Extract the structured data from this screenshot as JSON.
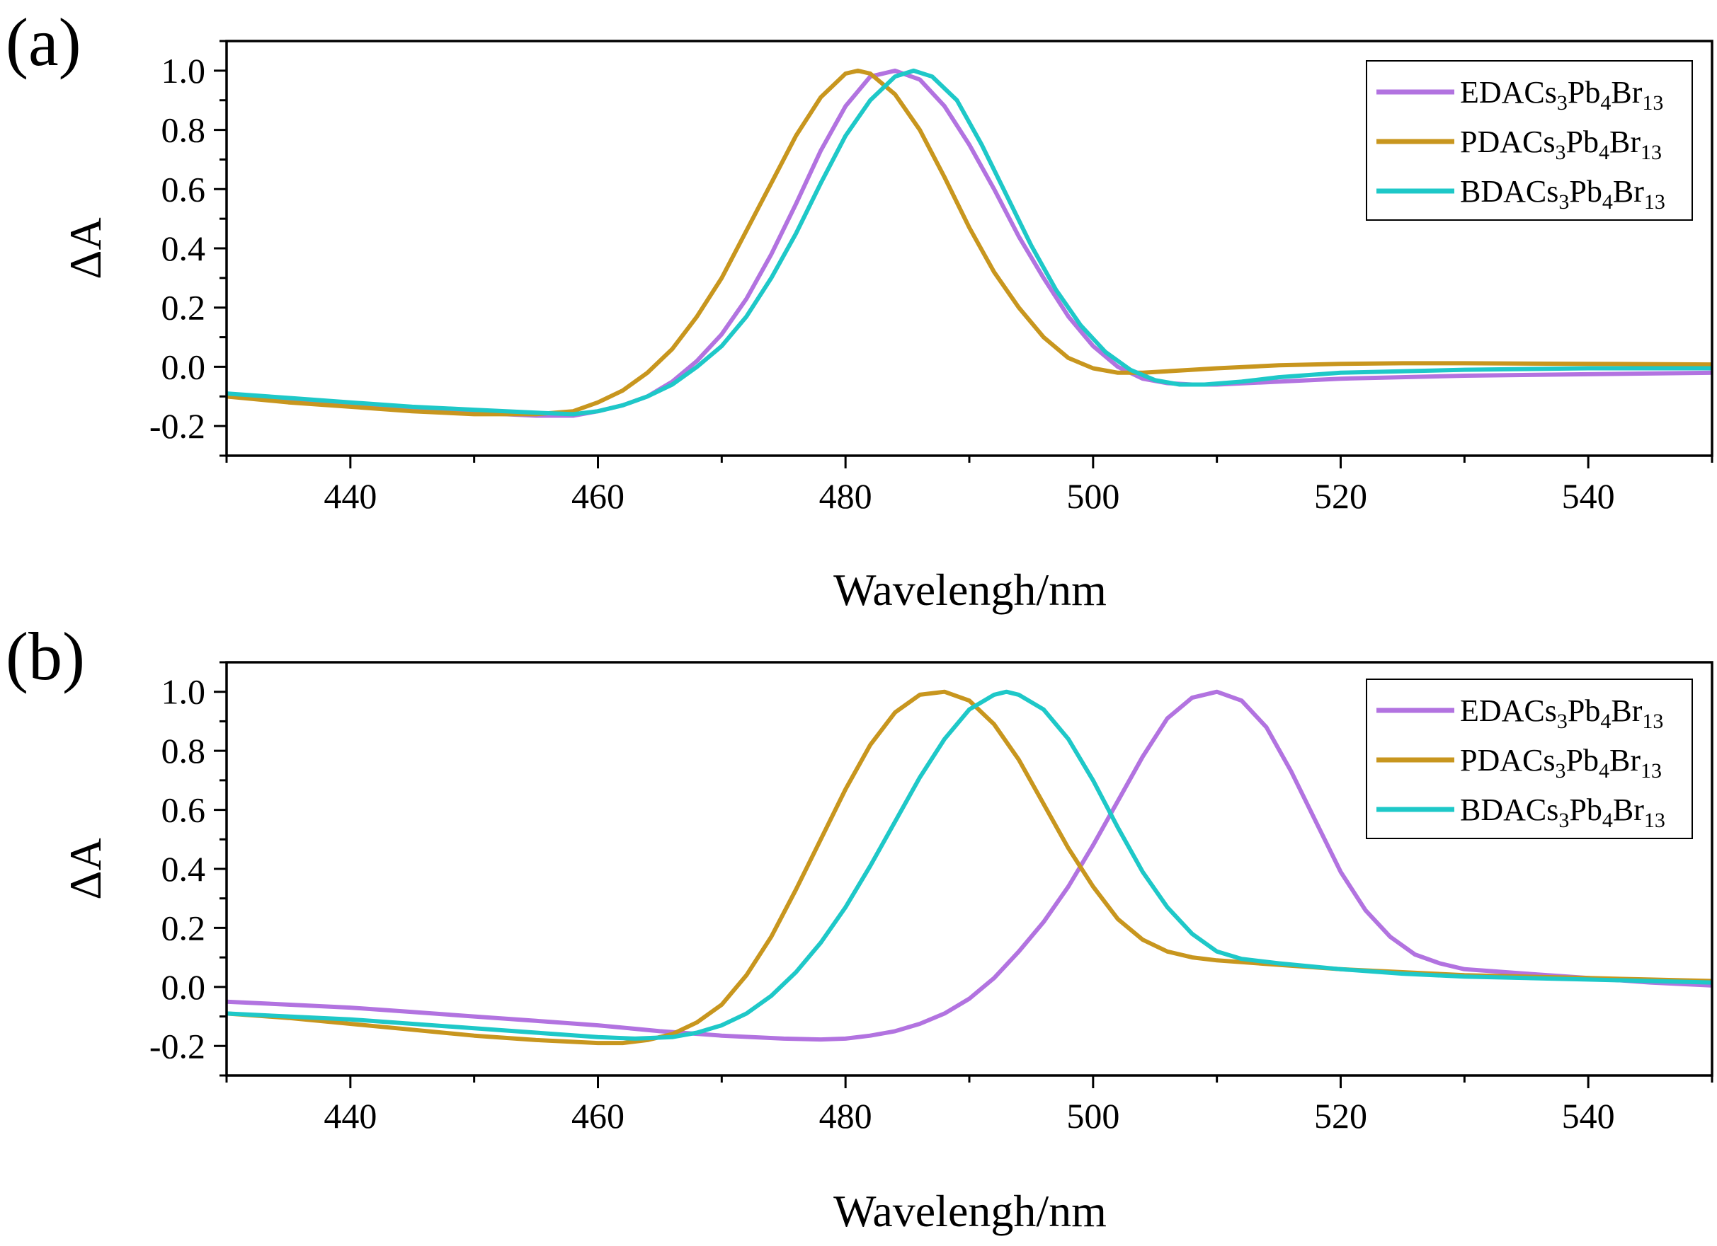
{
  "chart_data": [
    {
      "panel_label": "(a)",
      "type": "line",
      "title": "",
      "xlabel": "Wavelengh/nm",
      "ylabel": "ΔA",
      "xlim": [
        430,
        550
      ],
      "ylim": [
        -0.3,
        1.1
      ],
      "xticks": [
        "440",
        "460",
        "480",
        "500",
        "520",
        "540"
      ],
      "yticks": [
        "-0.2",
        "0.0",
        "0.2",
        "0.4",
        "0.6",
        "0.8",
        "1.0"
      ],
      "legend_position": "top-right",
      "series": [
        {
          "name": "EDACs3Pb4Br13",
          "label_parts": [
            "EDACs",
            "3",
            "Pb",
            "4",
            "Br",
            "13"
          ],
          "color": "#b273e0",
          "x": [
            430,
            435,
            440,
            445,
            450,
            455,
            458,
            460,
            462,
            464,
            466,
            468,
            470,
            472,
            474,
            476,
            478,
            480,
            482,
            484,
            486,
            488,
            490,
            492,
            494,
            496,
            498,
            500,
            502,
            504,
            506,
            508,
            510,
            515,
            520,
            530,
            540,
            550
          ],
          "y": [
            -0.1,
            -0.115,
            -0.13,
            -0.145,
            -0.155,
            -0.165,
            -0.165,
            -0.15,
            -0.13,
            -0.1,
            -0.05,
            0.02,
            0.11,
            0.23,
            0.38,
            0.55,
            0.73,
            0.88,
            0.98,
            1.0,
            0.97,
            0.88,
            0.75,
            0.6,
            0.44,
            0.3,
            0.17,
            0.07,
            0.0,
            -0.04,
            -0.055,
            -0.06,
            -0.06,
            -0.05,
            -0.04,
            -0.03,
            -0.025,
            -0.02
          ]
        },
        {
          "name": "PDACs3Pb4Br13",
          "label_parts": [
            "PDACs",
            "3",
            "Pb",
            "4",
            "Br",
            "13"
          ],
          "color": "#c8961e",
          "x": [
            430,
            435,
            440,
            445,
            450,
            455,
            458,
            460,
            462,
            464,
            466,
            468,
            470,
            472,
            474,
            476,
            478,
            480,
            481,
            482,
            484,
            486,
            488,
            490,
            492,
            494,
            496,
            498,
            500,
            502,
            504,
            506,
            508,
            510,
            515,
            520,
            525,
            530,
            540,
            550
          ],
          "y": [
            -0.1,
            -0.12,
            -0.135,
            -0.15,
            -0.16,
            -0.16,
            -0.15,
            -0.12,
            -0.08,
            -0.02,
            0.06,
            0.17,
            0.3,
            0.46,
            0.62,
            0.78,
            0.91,
            0.99,
            1.0,
            0.99,
            0.92,
            0.8,
            0.64,
            0.47,
            0.32,
            0.2,
            0.1,
            0.03,
            -0.005,
            -0.02,
            -0.02,
            -0.015,
            -0.01,
            -0.005,
            0.005,
            0.01,
            0.012,
            0.012,
            0.01,
            0.008
          ]
        },
        {
          "name": "BDACs3Pb4Br13",
          "label_parts": [
            "BDACs",
            "3",
            "Pb",
            "4",
            "Br",
            "13"
          ],
          "color": "#1ec8c8",
          "x": [
            430,
            435,
            440,
            445,
            450,
            455,
            458,
            460,
            462,
            464,
            466,
            468,
            470,
            472,
            474,
            476,
            478,
            480,
            482,
            484,
            485.5,
            487,
            489,
            491,
            493,
            495,
            497,
            499,
            501,
            503,
            505,
            507,
            509,
            512,
            515,
            520,
            530,
            540,
            550
          ],
          "y": [
            -0.09,
            -0.105,
            -0.12,
            -0.135,
            -0.145,
            -0.155,
            -0.16,
            -0.15,
            -0.13,
            -0.1,
            -0.06,
            0.0,
            0.07,
            0.17,
            0.3,
            0.45,
            0.62,
            0.78,
            0.9,
            0.98,
            1.0,
            0.98,
            0.9,
            0.75,
            0.58,
            0.41,
            0.26,
            0.14,
            0.05,
            -0.01,
            -0.045,
            -0.06,
            -0.06,
            -0.05,
            -0.035,
            -0.02,
            -0.01,
            -0.005,
            -0.005
          ]
        }
      ]
    },
    {
      "panel_label": "(b)",
      "type": "line",
      "title": "",
      "xlabel": "Wavelengh/nm",
      "ylabel": "ΔA",
      "xlim": [
        430,
        550
      ],
      "ylim": [
        -0.3,
        1.1
      ],
      "xticks": [
        "440",
        "460",
        "480",
        "500",
        "520",
        "540"
      ],
      "yticks": [
        "-0.2",
        "0.0",
        "0.2",
        "0.4",
        "0.6",
        "0.8",
        "1.0"
      ],
      "legend_position": "top-right",
      "series": [
        {
          "name": "EDACs3Pb4Br13",
          "label_parts": [
            "EDACs",
            "3",
            "Pb",
            "4",
            "Br",
            "13"
          ],
          "color": "#b273e0",
          "x": [
            430,
            435,
            440,
            445,
            450,
            455,
            460,
            465,
            470,
            475,
            478,
            480,
            482,
            484,
            486,
            488,
            490,
            492,
            494,
            496,
            498,
            500,
            502,
            504,
            506,
            508,
            510,
            512,
            514,
            516,
            518,
            520,
            522,
            524,
            526,
            528,
            530,
            535,
            540,
            545,
            550
          ],
          "y": [
            -0.05,
            -0.06,
            -0.07,
            -0.085,
            -0.1,
            -0.115,
            -0.13,
            -0.15,
            -0.165,
            -0.175,
            -0.178,
            -0.175,
            -0.165,
            -0.15,
            -0.125,
            -0.09,
            -0.04,
            0.03,
            0.12,
            0.22,
            0.34,
            0.48,
            0.63,
            0.78,
            0.91,
            0.98,
            1.0,
            0.97,
            0.88,
            0.73,
            0.56,
            0.39,
            0.26,
            0.17,
            0.11,
            0.08,
            0.06,
            0.045,
            0.03,
            0.015,
            0.005
          ]
        },
        {
          "name": "PDACs3Pb4Br13",
          "label_parts": [
            "PDACs",
            "3",
            "Pb",
            "4",
            "Br",
            "13"
          ],
          "color": "#c8961e",
          "x": [
            430,
            435,
            440,
            445,
            450,
            455,
            460,
            462,
            464,
            466,
            468,
            470,
            472,
            474,
            476,
            478,
            480,
            482,
            484,
            486,
            488,
            490,
            492,
            494,
            496,
            498,
            500,
            502,
            504,
            506,
            508,
            510,
            515,
            520,
            525,
            530,
            535,
            540,
            545,
            550
          ],
          "y": [
            -0.09,
            -0.105,
            -0.125,
            -0.145,
            -0.165,
            -0.18,
            -0.19,
            -0.19,
            -0.18,
            -0.16,
            -0.12,
            -0.06,
            0.04,
            0.17,
            0.33,
            0.5,
            0.67,
            0.82,
            0.93,
            0.99,
            1.0,
            0.97,
            0.89,
            0.77,
            0.62,
            0.47,
            0.34,
            0.23,
            0.16,
            0.12,
            0.1,
            0.09,
            0.075,
            0.06,
            0.05,
            0.04,
            0.035,
            0.03,
            0.025,
            0.02
          ]
        },
        {
          "name": "BDACs3Pb4Br13",
          "label_parts": [
            "BDACs",
            "3",
            "Pb",
            "4",
            "Br",
            "13"
          ],
          "color": "#1ec8c8",
          "x": [
            430,
            435,
            440,
            445,
            450,
            455,
            460,
            463,
            466,
            468,
            470,
            472,
            474,
            476,
            478,
            480,
            482,
            484,
            486,
            488,
            490,
            492,
            493,
            494,
            496,
            498,
            500,
            502,
            504,
            506,
            508,
            510,
            512,
            515,
            520,
            525,
            530,
            535,
            540,
            545,
            550
          ],
          "y": [
            -0.09,
            -0.1,
            -0.11,
            -0.125,
            -0.14,
            -0.155,
            -0.17,
            -0.175,
            -0.17,
            -0.155,
            -0.13,
            -0.09,
            -0.03,
            0.05,
            0.15,
            0.27,
            0.41,
            0.56,
            0.71,
            0.84,
            0.94,
            0.99,
            1.0,
            0.99,
            0.94,
            0.84,
            0.7,
            0.54,
            0.39,
            0.27,
            0.18,
            0.12,
            0.095,
            0.08,
            0.06,
            0.045,
            0.035,
            0.03,
            0.025,
            0.02,
            0.015
          ]
        }
      ]
    }
  ]
}
